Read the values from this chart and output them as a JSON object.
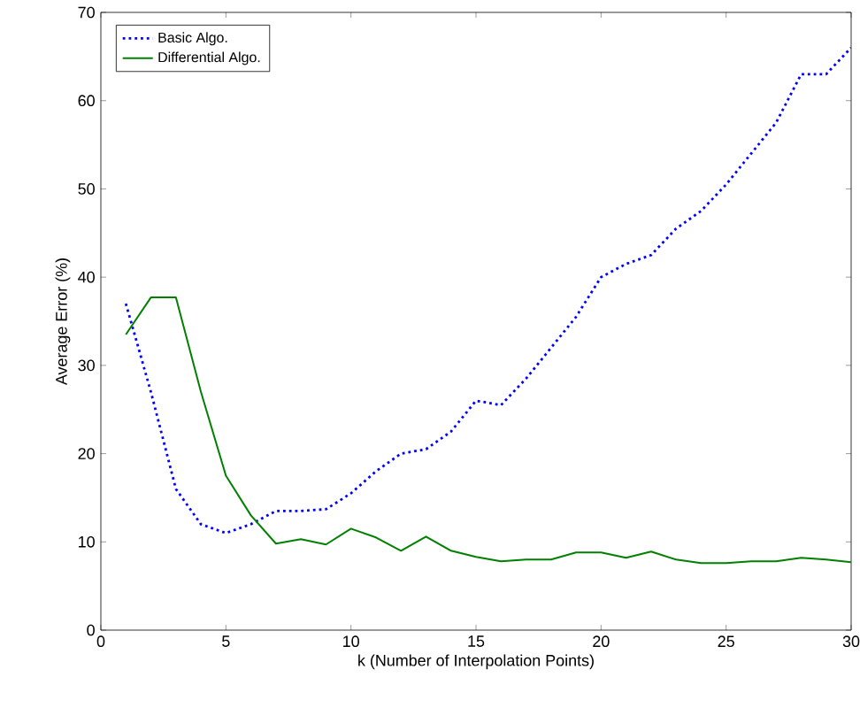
{
  "chart_data": {
    "type": "line",
    "xlabel": "k (Number of Interpolation Points)",
    "ylabel": "Average Error (%)",
    "x": [
      1,
      2,
      3,
      4,
      5,
      6,
      7,
      8,
      9,
      10,
      11,
      12,
      13,
      14,
      15,
      16,
      17,
      18,
      19,
      20,
      21,
      22,
      23,
      24,
      25,
      26,
      27,
      28,
      29,
      30
    ],
    "series": [
      {
        "name": "Basic Algo.",
        "color": "#0000ff",
        "line_style": "dotted",
        "values": [
          37,
          27,
          16,
          12,
          11,
          12,
          13.5,
          13.5,
          13.7,
          15.5,
          18,
          20,
          20.5,
          22.5,
          26,
          25.5,
          28.5,
          32,
          35.5,
          40,
          41.5,
          42.5,
          45.5,
          47.5,
          50.5,
          54,
          57.5,
          63,
          63,
          66
        ]
      },
      {
        "name": "Differential Algo.",
        "color": "#008000",
        "line_style": "solid",
        "values": [
          33.5,
          37.7,
          37.7,
          27,
          17.5,
          13,
          9.8,
          10.3,
          9.7,
          11.5,
          10.5,
          9,
          10.6,
          9,
          8.3,
          7.8,
          8,
          8,
          8.8,
          8.8,
          8.2,
          8.9,
          8,
          7.6,
          7.6,
          7.8,
          7.8,
          8.2,
          8,
          7.7
        ]
      }
    ],
    "xlim": [
      0,
      30
    ],
    "ylim": [
      0,
      70
    ],
    "xticks": [
      0,
      5,
      10,
      15,
      20,
      25,
      30
    ],
    "yticks": [
      0,
      10,
      20,
      30,
      40,
      50,
      60,
      70
    ],
    "legend": "top left",
    "grid": false,
    "marker": "none"
  }
}
